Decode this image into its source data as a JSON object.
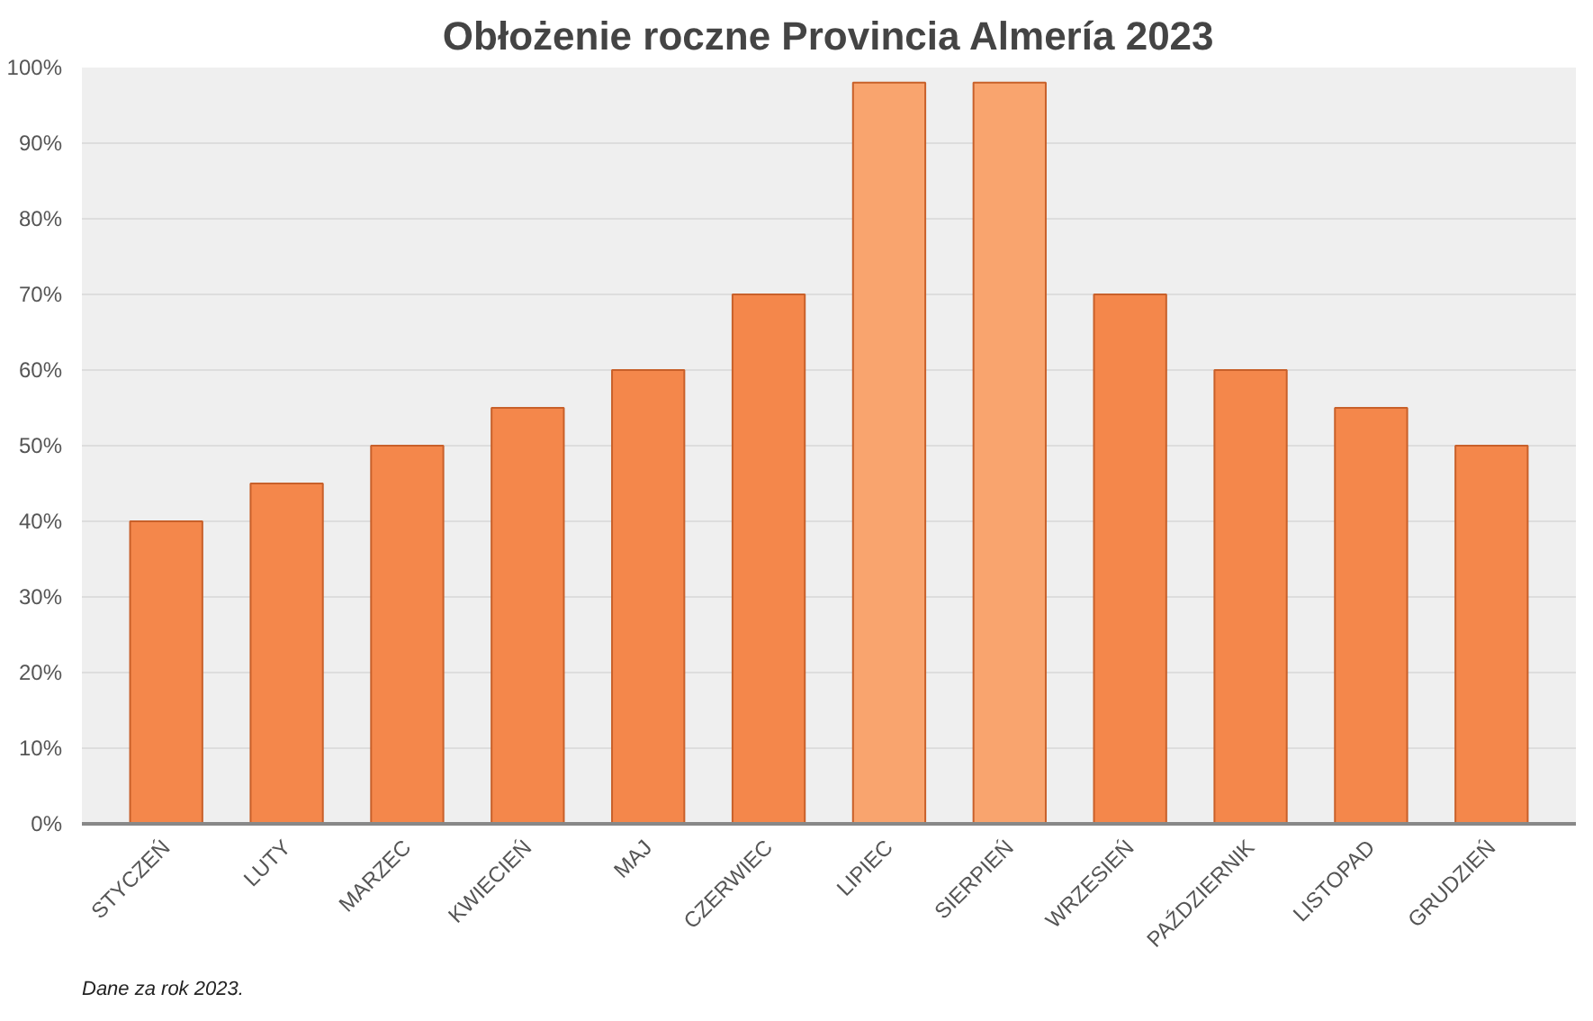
{
  "chart_data": {
    "type": "bar",
    "title": "Obłożenie roczne Provincia Almería 2023",
    "categories": [
      "STYCZEŃ",
      "LUTY",
      "MARZEC",
      "KWIECIEŃ",
      "MAJ",
      "CZERWIEC",
      "LIPIEC",
      "SIERPIEŃ",
      "WRZESIEŃ",
      "PAŹDZIERNIK",
      "LISTOPAD",
      "GRUDZIEŃ"
    ],
    "values": [
      40,
      45,
      50,
      55,
      60,
      70,
      98,
      98,
      70,
      60,
      55,
      50
    ],
    "colors": [
      "#f4874b",
      "#f4874b",
      "#f4874b",
      "#f4874b",
      "#f4874b",
      "#f4874b",
      "#f9a46e",
      "#f9a46e",
      "#f4874b",
      "#f4874b",
      "#f4874b",
      "#f4874b"
    ],
    "ylim": [
      0,
      100
    ],
    "yticks": [
      {
        "value": 0,
        "label": "0%"
      },
      {
        "value": 10,
        "label": "10%"
      },
      {
        "value": 20,
        "label": "20%"
      },
      {
        "value": 30,
        "label": "30%"
      },
      {
        "value": 40,
        "label": "40%"
      },
      {
        "value": 50,
        "label": "50%"
      },
      {
        "value": 60,
        "label": "60%"
      },
      {
        "value": 70,
        "label": "70%"
      },
      {
        "value": 80,
        "label": "80%"
      },
      {
        "value": 90,
        "label": "90%"
      },
      {
        "value": 100,
        "label": "100%"
      }
    ],
    "grid": "y",
    "annotations": [
      "Dane za rok 2023."
    ]
  }
}
